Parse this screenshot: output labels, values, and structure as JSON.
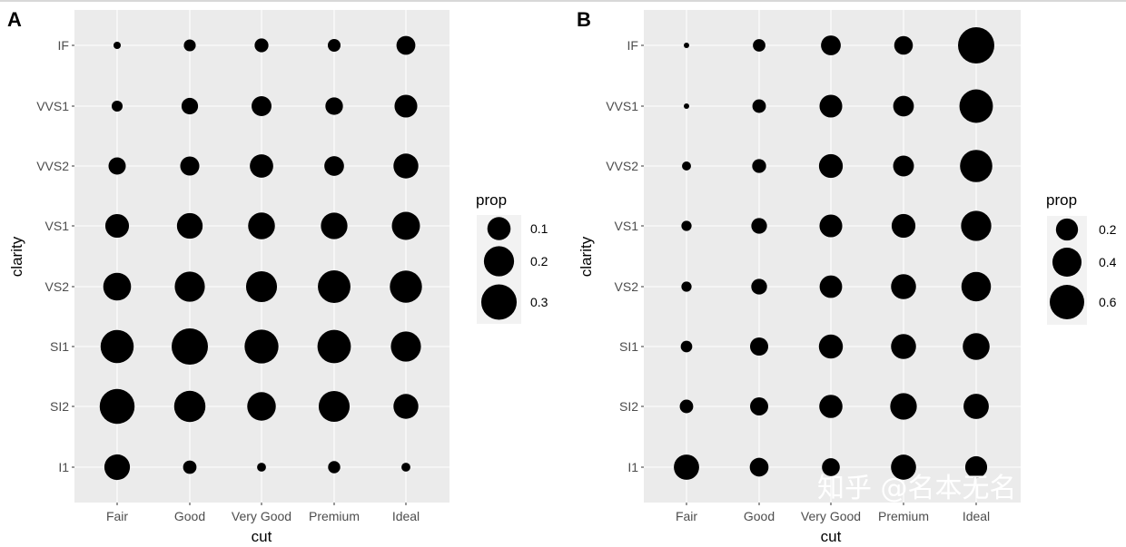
{
  "watermark": "知乎 @名本无名",
  "chart_data": [
    {
      "type": "scatter",
      "tag": "A",
      "xlabel": "cut",
      "ylabel": "clarity",
      "x_categories": [
        "Fair",
        "Good",
        "Very Good",
        "Premium",
        "Ideal"
      ],
      "y_categories": [
        "I1",
        "SI2",
        "SI1",
        "VS2",
        "VS1",
        "VVS2",
        "VVS1",
        "IF"
      ],
      "size_legend": {
        "title": "prop",
        "breaks": [
          0.1,
          0.2,
          0.3
        ],
        "labels": [
          "0.1",
          "0.2",
          "0.3"
        ]
      },
      "size_limits": [
        0.006,
        0.318
      ],
      "point_color": "#000000",
      "panel_background": "#ebebeb",
      "grid": true,
      "legend_position": "right",
      "values_by_x": {
        "Fair": [
          0.13,
          0.289,
          0.253,
          0.162,
          0.106,
          0.043,
          0.011,
          0.006
        ],
        "Good": [
          0.02,
          0.22,
          0.318,
          0.199,
          0.132,
          0.058,
          0.038,
          0.014
        ],
        "Very Good": [
          0.007,
          0.174,
          0.268,
          0.214,
          0.147,
          0.102,
          0.065,
          0.022
        ],
        "Premium": [
          0.015,
          0.214,
          0.259,
          0.243,
          0.144,
          0.063,
          0.045,
          0.017
        ],
        "Ideal": [
          0.007,
          0.121,
          0.199,
          0.235,
          0.167,
          0.121,
          0.095,
          0.056
        ]
      }
    },
    {
      "type": "scatter",
      "tag": "B",
      "xlabel": "cut",
      "ylabel": "clarity",
      "x_categories": [
        "Fair",
        "Good",
        "Very Good",
        "Premium",
        "Ideal"
      ],
      "y_categories": [
        "I1",
        "SI2",
        "SI1",
        "VS2",
        "VS1",
        "VVS2",
        "VVS1",
        "IF"
      ],
      "size_legend": {
        "title": "prop",
        "breaks": [
          0.2,
          0.4,
          0.6
        ],
        "labels": [
          "0.2",
          "0.4",
          "0.6"
        ]
      },
      "size_limits": [
        0.005,
        0.677
      ],
      "point_color": "#000000",
      "panel_background": "#ebebeb",
      "grid": true,
      "legend_position": "right",
      "values_by_x": {
        "Fair": [
          0.283,
          0.051,
          0.031,
          0.021,
          0.021,
          0.014,
          0.005,
          0.005
        ],
        "Good": [
          0.13,
          0.118,
          0.119,
          0.08,
          0.079,
          0.056,
          0.051,
          0.04
        ],
        "Very Good": [
          0.113,
          0.228,
          0.248,
          0.211,
          0.217,
          0.244,
          0.216,
          0.15
        ],
        "Premium": [
          0.277,
          0.321,
          0.274,
          0.274,
          0.243,
          0.172,
          0.169,
          0.128
        ],
        "Ideal": [
          0.197,
          0.283,
          0.328,
          0.414,
          0.439,
          0.514,
          0.56,
          0.677
        ]
      }
    }
  ]
}
